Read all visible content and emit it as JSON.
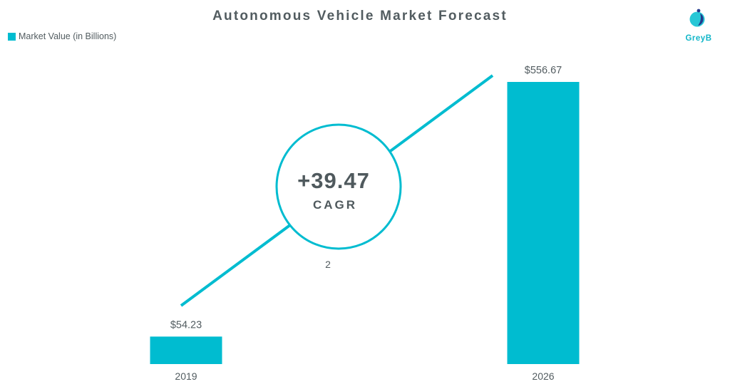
{
  "header": {
    "title": "Autonomous Vehicle Market Forecast"
  },
  "legend": {
    "label": "Market Value (in Billions)"
  },
  "brand": {
    "logo_text": "GreyB",
    "accent_color": "#00BCD0",
    "text_color": "#525C60"
  },
  "cagr": {
    "value": "+39.47",
    "label": "CAGR",
    "footnote": "2"
  },
  "chart_data": {
    "type": "bar",
    "categories": [
      "2019",
      "2026"
    ],
    "values": [
      54.23,
      556.67
    ],
    "value_labels": [
      "$54.23",
      "$556.67"
    ],
    "series": [
      {
        "name": "Market Value (in Billions)",
        "values": [
          54.23,
          556.67
        ]
      }
    ],
    "title": "Autonomous Vehicle Market Forecast",
    "xlabel": "",
    "ylabel": "",
    "ylim": [
      0,
      556.67
    ],
    "grid": false,
    "legend_position": "top-left"
  }
}
